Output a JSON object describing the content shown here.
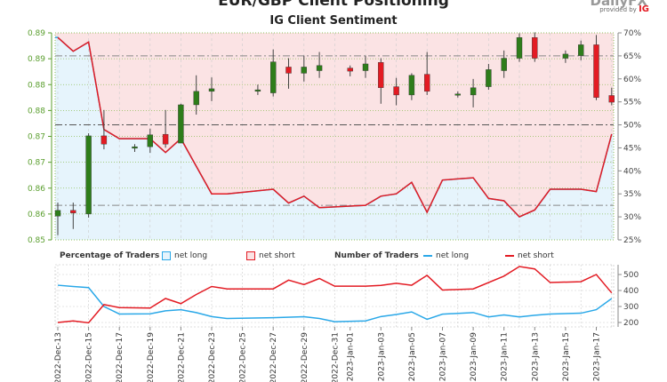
{
  "title": "EUR/GBP Client Positioning",
  "subtitle": "IG Client Sentiment",
  "logo": "DailyFX",
  "provided_by": "provided by",
  "provided_brand": "IG",
  "colors": {
    "long": "#2aa8e8",
    "short": "#e31b23",
    "up": "#2e7d1a",
    "down": "#e31b23"
  },
  "legend": {
    "pct_title": "Percentage of Traders",
    "num_title": "Number of Traders",
    "net_long": "net long",
    "net_short": "net short"
  },
  "chart_data": [
    {
      "type": "candlestick+area",
      "title": "IG Client Sentiment",
      "price_ticks": [
        "0.89",
        "0.89",
        "0.88",
        "0.88",
        "0.87",
        "0.87",
        "0.86",
        "0.86",
        "0.85"
      ],
      "price_tick_values": [
        0.89,
        0.885,
        0.88,
        0.875,
        0.87,
        0.865,
        0.86,
        0.855,
        0.85
      ],
      "ylim_price": [
        0.85,
        0.89
      ],
      "pct_ticks": [
        "70%",
        "65%",
        "60%",
        "55%",
        "50%",
        "45%",
        "40%",
        "35%",
        "30%",
        "25%"
      ],
      "pct_tick_values": [
        70,
        65,
        60,
        55,
        50,
        45,
        40,
        35,
        30,
        25
      ],
      "ylim_pct": [
        25,
        70
      ],
      "candles": [
        {
          "d": 0,
          "o": 0.8546,
          "h": 0.8572,
          "l": 0.8509,
          "c": 0.8557
        },
        {
          "d": 1,
          "o": 0.8557,
          "h": 0.8572,
          "l": 0.8521,
          "c": 0.8552
        },
        {
          "d": 2,
          "o": 0.855,
          "h": 0.8706,
          "l": 0.8543,
          "c": 0.8701
        },
        {
          "d": 3,
          "o": 0.8701,
          "h": 0.8751,
          "l": 0.8675,
          "c": 0.8685
        },
        {
          "d": 5,
          "o": 0.8677,
          "h": 0.8685,
          "l": 0.867,
          "c": 0.868
        },
        {
          "d": 6,
          "o": 0.868,
          "h": 0.8715,
          "l": 0.8668,
          "c": 0.8703
        },
        {
          "d": 7,
          "o": 0.8704,
          "h": 0.8751,
          "l": 0.8678,
          "c": 0.8685
        },
        {
          "d": 8,
          "o": 0.8687,
          "h": 0.8763,
          "l": 0.8689,
          "c": 0.8761
        },
        {
          "d": 9,
          "o": 0.8761,
          "h": 0.8818,
          "l": 0.8742,
          "c": 0.8787
        },
        {
          "d": 10,
          "o": 0.8787,
          "h": 0.8814,
          "l": 0.8768,
          "c": 0.8792
        },
        {
          "d": 13,
          "o": 0.8787,
          "h": 0.88,
          "l": 0.878,
          "c": 0.879
        },
        {
          "d": 14,
          "o": 0.8784,
          "h": 0.8868,
          "l": 0.8777,
          "c": 0.8844
        },
        {
          "d": 15,
          "o": 0.8834,
          "h": 0.8851,
          "l": 0.8792,
          "c": 0.8822
        },
        {
          "d": 16,
          "o": 0.8822,
          "h": 0.8856,
          "l": 0.8806,
          "c": 0.8834
        },
        {
          "d": 17,
          "o": 0.8827,
          "h": 0.8863,
          "l": 0.8813,
          "c": 0.8837
        },
        {
          "d": 19,
          "o": 0.8832,
          "h": 0.8837,
          "l": 0.8816,
          "c": 0.8826
        },
        {
          "d": 20,
          "o": 0.8827,
          "h": 0.8856,
          "l": 0.8813,
          "c": 0.884
        },
        {
          "d": 21,
          "o": 0.8843,
          "h": 0.8851,
          "l": 0.8763,
          "c": 0.8794
        },
        {
          "d": 22,
          "o": 0.8796,
          "h": 0.8813,
          "l": 0.876,
          "c": 0.878
        },
        {
          "d": 23,
          "o": 0.878,
          "h": 0.8822,
          "l": 0.877,
          "c": 0.8818
        },
        {
          "d": 24,
          "o": 0.882,
          "h": 0.8863,
          "l": 0.878,
          "c": 0.8787
        },
        {
          "d": 26,
          "o": 0.878,
          "h": 0.8787,
          "l": 0.8775,
          "c": 0.8782
        },
        {
          "d": 27,
          "o": 0.878,
          "h": 0.8811,
          "l": 0.8756,
          "c": 0.8794
        },
        {
          "d": 28,
          "o": 0.8796,
          "h": 0.884,
          "l": 0.879,
          "c": 0.8829
        },
        {
          "d": 29,
          "o": 0.8827,
          "h": 0.8866,
          "l": 0.8813,
          "c": 0.8851
        },
        {
          "d": 30,
          "o": 0.8851,
          "h": 0.8899,
          "l": 0.8844,
          "c": 0.8891
        },
        {
          "d": 31,
          "o": 0.8891,
          "h": 0.8901,
          "l": 0.8844,
          "c": 0.8851
        },
        {
          "d": 33,
          "o": 0.8851,
          "h": 0.8866,
          "l": 0.8842,
          "c": 0.8859
        },
        {
          "d": 34,
          "o": 0.8856,
          "h": 0.8885,
          "l": 0.8847,
          "c": 0.8877
        },
        {
          "d": 35,
          "o": 0.8877,
          "h": 0.8896,
          "l": 0.877,
          "c": 0.8775
        },
        {
          "d": 36,
          "o": 0.8779,
          "h": 0.8794,
          "l": 0.876,
          "c": 0.8766
        }
      ],
      "net_long_pct": [
        [
          0,
          69
        ],
        [
          1,
          66
        ],
        [
          2,
          68
        ],
        [
          3,
          49
        ],
        [
          4,
          47
        ],
        [
          6,
          47
        ],
        [
          7,
          44
        ],
        [
          8,
          47
        ],
        [
          10,
          35
        ],
        [
          11,
          35
        ],
        [
          14,
          36
        ],
        [
          15,
          33
        ],
        [
          16,
          34.5
        ],
        [
          17,
          32
        ],
        [
          20,
          32.5
        ],
        [
          21,
          34.5
        ],
        [
          22,
          35
        ],
        [
          23,
          37.5
        ],
        [
          24,
          31
        ],
        [
          25,
          38
        ],
        [
          27,
          38.5
        ],
        [
          28,
          34
        ],
        [
          29,
          33.5
        ],
        [
          30,
          30
        ],
        [
          31,
          31.5
        ],
        [
          32,
          36
        ],
        [
          34,
          36
        ],
        [
          35,
          35.5
        ],
        [
          36,
          48
        ]
      ]
    },
    {
      "type": "line",
      "title": "Number of Traders",
      "count_ticks": [
        "500",
        "400",
        "300",
        "200"
      ],
      "count_tick_values": [
        500,
        400,
        300,
        200
      ],
      "x_labels": [
        "2022-Dec-13",
        "2022-Dec-15",
        "2022-Dec-17",
        "2022-Dec-19",
        "2022-Dec-21",
        "2022-Dec-23",
        "2022-Dec-25",
        "2022-Dec-27",
        "2022-Dec-29",
        "2022-Dec-31",
        "2023-Jan-01",
        "2023-Jan-03",
        "2023-Jan-05",
        "2023-Jan-07",
        "2023-Jan-09",
        "2023-Jan-11",
        "2023-Jan-13",
        "2023-Jan-15",
        "2023-Jan-17"
      ],
      "x_label_days": [
        0,
        2,
        4,
        6,
        8,
        10,
        12,
        14,
        16,
        18,
        19,
        21,
        23,
        25,
        27,
        29,
        31,
        33,
        35
      ],
      "series": [
        {
          "name": "net long",
          "values": [
            [
              0,
              433
            ],
            [
              1,
              425
            ],
            [
              2,
              418
            ],
            [
              3,
              300
            ],
            [
              4,
              253
            ],
            [
              6,
              254
            ],
            [
              7,
              273
            ],
            [
              8,
              280
            ],
            [
              9,
              262
            ],
            [
              10,
              237
            ],
            [
              11,
              225
            ],
            [
              14,
              230
            ],
            [
              16,
              236
            ],
            [
              17,
              225
            ],
            [
              18,
              205
            ],
            [
              20,
              210
            ],
            [
              21,
              237
            ],
            [
              22,
              250
            ],
            [
              23,
              266
            ],
            [
              24,
              220
            ],
            [
              25,
              252
            ],
            [
              27,
              262
            ],
            [
              28,
              235
            ],
            [
              29,
              247
            ],
            [
              30,
              235
            ],
            [
              31,
              245
            ],
            [
              32,
              253
            ],
            [
              34,
              258
            ],
            [
              35,
              280
            ],
            [
              36,
              350
            ]
          ]
        },
        {
          "name": "net short",
          "values": [
            [
              0,
              200
            ],
            [
              1,
              210
            ],
            [
              2,
              198
            ],
            [
              3,
              312
            ],
            [
              4,
              293
            ],
            [
              6,
              290
            ],
            [
              7,
              350
            ],
            [
              8,
              318
            ],
            [
              9,
              375
            ],
            [
              10,
              425
            ],
            [
              11,
              410
            ],
            [
              14,
              410
            ],
            [
              15,
              465
            ],
            [
              16,
              437
            ],
            [
              17,
              475
            ],
            [
              18,
              427
            ],
            [
              20,
              427
            ],
            [
              21,
              432
            ],
            [
              22,
              445
            ],
            [
              23,
              433
            ],
            [
              24,
              495
            ],
            [
              25,
              403
            ],
            [
              27,
              410
            ],
            [
              29,
              490
            ],
            [
              30,
              550
            ],
            [
              31,
              535
            ],
            [
              32,
              450
            ],
            [
              34,
              455
            ],
            [
              35,
              500
            ],
            [
              36,
              385
            ]
          ]
        }
      ]
    }
  ]
}
